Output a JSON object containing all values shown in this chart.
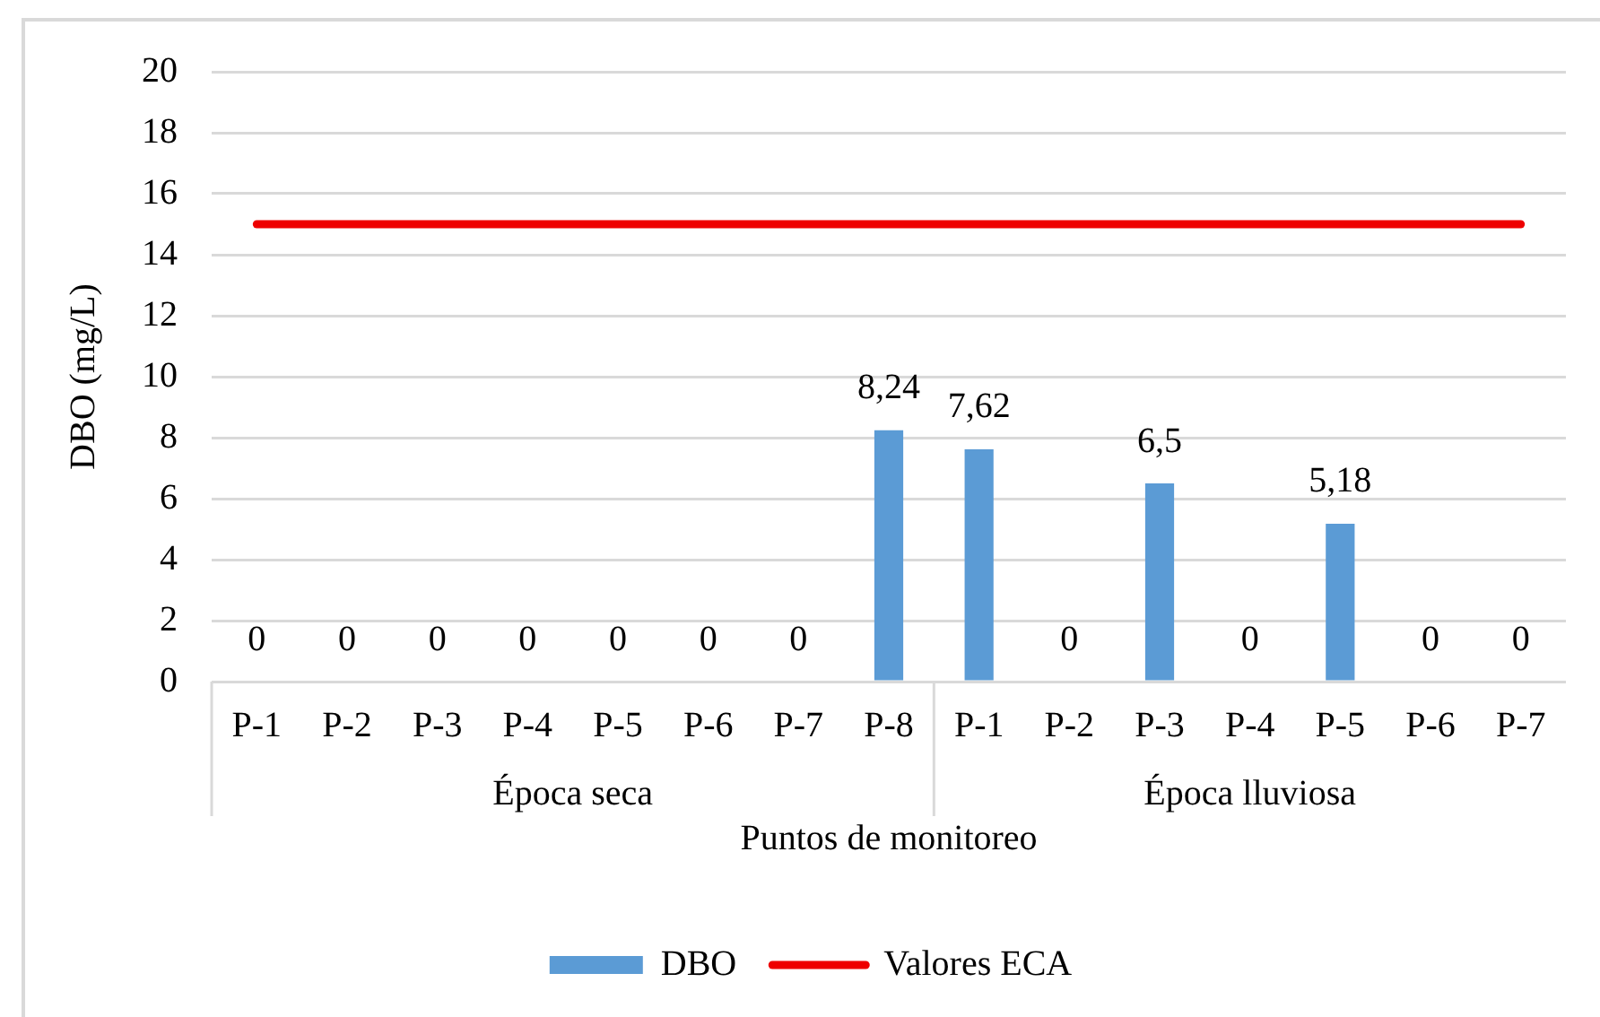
{
  "chart_data": {
    "type": "bar",
    "xlabel": "Puntos de monitoreo",
    "ylabel": "DBO (mg/L)",
    "categories": [
      "P-1",
      "P-2",
      "P-3",
      "P-4",
      "P-5",
      "P-6",
      "P-7",
      "P-8",
      "P-1",
      "P-2",
      "P-3",
      "P-4",
      "P-5",
      "P-6",
      "P-7"
    ],
    "series": [
      {
        "name": "DBO",
        "color": "#5b9bd5",
        "values": [
          0,
          0,
          0,
          0,
          0,
          0,
          0,
          8.24,
          7.62,
          0,
          6.5,
          0,
          5.18,
          0,
          0
        ],
        "value_labels": [
          "0",
          "0",
          "0",
          "0",
          "0",
          "0",
          "0",
          "8,24",
          "7,62",
          "0",
          "6,5",
          "0",
          "5,18",
          "0",
          "0"
        ]
      },
      {
        "name": "Valores ECA",
        "type": "line",
        "color": "#ee0000",
        "values": [
          15,
          15,
          15,
          15,
          15,
          15,
          15,
          15,
          15,
          15,
          15,
          15,
          15,
          15,
          15
        ]
      }
    ],
    "ylim": [
      0,
      20
    ],
    "yticks": [
      0,
      2,
      4,
      6,
      8,
      10,
      12,
      14,
      16,
      18,
      20
    ],
    "grid": "y",
    "legend": "bottom",
    "annotations": [
      "Época seca",
      "Época lluviosa"
    ]
  }
}
